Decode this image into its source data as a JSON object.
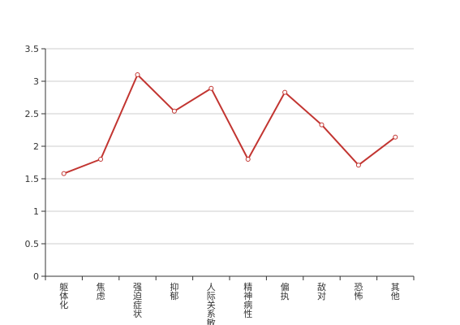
{
  "chart_data": {
    "type": "line",
    "title": "",
    "xlabel": "",
    "ylabel": "",
    "categories": [
      "躯体化",
      "焦虑",
      "强迫症状",
      "抑郁",
      "人际关系敏感",
      "精神病性",
      "偏执",
      "敌对",
      "恐怖",
      "其他"
    ],
    "series": [
      {
        "values": [
          1.58,
          1.8,
          3.1,
          2.54,
          2.89,
          1.8,
          2.83,
          2.33,
          1.71,
          2.14
        ]
      }
    ],
    "ylim": [
      0,
      3.5
    ],
    "yticks": [
      0,
      0.5,
      1,
      1.5,
      2,
      2.5,
      3,
      3.5
    ],
    "ytick_labels": [
      "0",
      "0.5",
      "1",
      "1.5",
      "2",
      "2.5",
      "3",
      "3.5"
    ],
    "grid": true,
    "legend": "none",
    "colors": {
      "line": "#c23531",
      "point_fill": "#ffffff",
      "grid": "#cccccc",
      "axis": "#333333"
    }
  }
}
